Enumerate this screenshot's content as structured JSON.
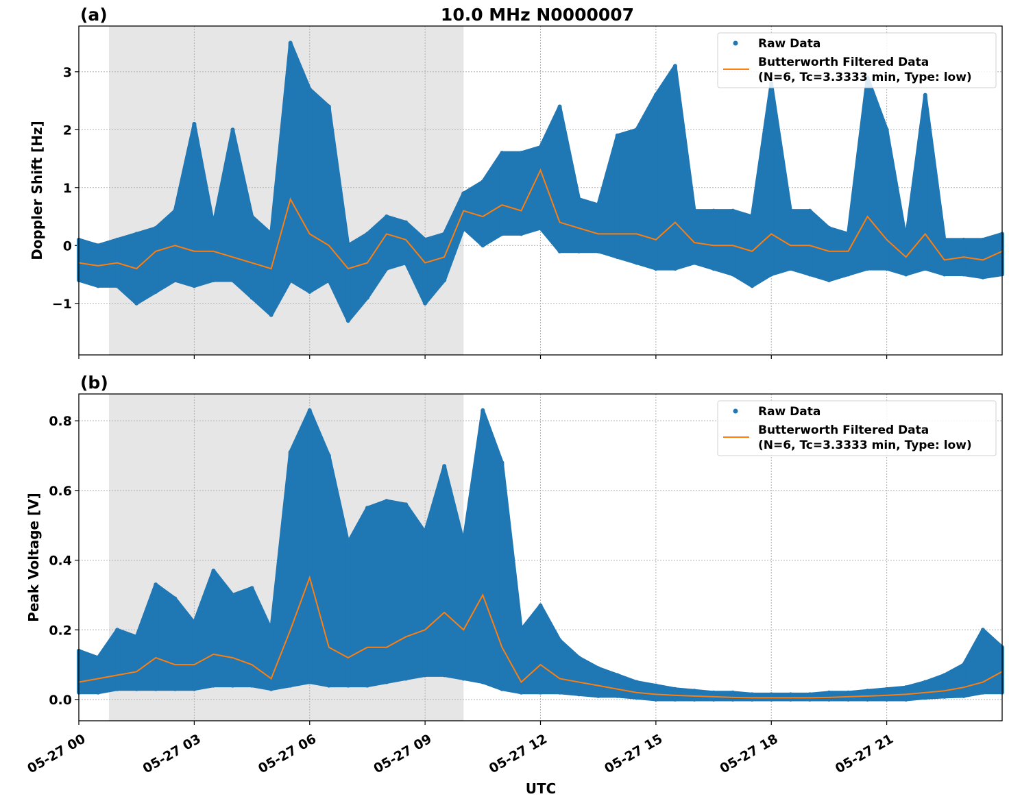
{
  "title": "10.0 MHz N0000007",
  "colors": {
    "raw": "#1f77b4",
    "filtered": "#ff7f0e",
    "shade": "#e6e6e6"
  },
  "shaded_interval": [
    "05-27 00:47",
    "05-27 10:00"
  ],
  "chart_data": [
    {
      "type": "scatter",
      "panel_label": "(a)",
      "ylabel": "Doppler Shift [Hz]",
      "xlabel": "",
      "ylim": [
        -1.89,
        3.79
      ],
      "yticks": [
        -1,
        0,
        1,
        2,
        3
      ],
      "ytick_labels": [
        "−1",
        "0",
        "1",
        "2",
        "3"
      ],
      "grid": true,
      "legend_position": "top-right",
      "legend": [
        "Raw Data",
        "Butterworth Filtered Data",
        "(N=6, Tc=3.3333 min, Type: low)"
      ],
      "x_hours_from": "05-27 00:00",
      "x": [
        0,
        0.5,
        1,
        1.5,
        2,
        2.5,
        3,
        3.5,
        4,
        4.5,
        5,
        5.5,
        6,
        6.5,
        7,
        7.5,
        8,
        8.5,
        9,
        9.5,
        10,
        10.5,
        11,
        11.5,
        12,
        12.5,
        13,
        13.5,
        14,
        14.5,
        15,
        15.5,
        16,
        16.5,
        17,
        17.5,
        18,
        18.5,
        19,
        19.5,
        20,
        20.5,
        21,
        21.5,
        22,
        22.5,
        23,
        23.5,
        24
      ],
      "series": [
        {
          "name": "Butterworth Filtered Data",
          "values": [
            -0.3,
            -0.35,
            -0.3,
            -0.4,
            -0.1,
            0.0,
            -0.1,
            -0.1,
            -0.2,
            -0.3,
            -0.4,
            0.8,
            0.2,
            0.0,
            -0.4,
            -0.3,
            0.2,
            0.1,
            -0.3,
            -0.2,
            0.6,
            0.5,
            0.7,
            0.6,
            1.3,
            0.4,
            0.3,
            0.2,
            0.2,
            0.2,
            0.1,
            0.4,
            0.05,
            0.0,
            0.0,
            -0.1,
            0.2,
            0.0,
            0.0,
            -0.1,
            -0.1,
            0.5,
            0.1,
            -0.2,
            0.2,
            -0.25,
            -0.2,
            -0.25,
            -0.1
          ]
        },
        {
          "name": "Raw Data",
          "low": [
            -0.6,
            -0.7,
            -0.7,
            -1.0,
            -0.8,
            -0.6,
            -0.7,
            -0.6,
            -0.6,
            -0.9,
            -1.2,
            -0.6,
            -0.8,
            -0.6,
            -1.3,
            -0.9,
            -0.4,
            -0.3,
            -1.0,
            -0.6,
            0.3,
            0.0,
            0.2,
            0.2,
            0.3,
            -0.1,
            -0.1,
            -0.1,
            -0.2,
            -0.3,
            -0.4,
            -0.4,
            -0.3,
            -0.4,
            -0.5,
            -0.7,
            -0.5,
            -0.4,
            -0.5,
            -0.6,
            -0.5,
            -0.4,
            -0.4,
            -0.5,
            -0.4,
            -0.5,
            -0.5,
            -0.55,
            -0.5
          ],
          "high": [
            0.1,
            0.0,
            0.1,
            0.2,
            0.3,
            0.6,
            2.1,
            0.35,
            2.0,
            0.5,
            0.2,
            3.5,
            2.7,
            2.4,
            0.0,
            0.2,
            0.5,
            0.4,
            0.1,
            0.2,
            0.9,
            1.1,
            1.6,
            1.6,
            1.7,
            2.4,
            0.8,
            0.7,
            1.9,
            2.0,
            2.6,
            3.1,
            0.6,
            0.6,
            0.6,
            0.5,
            2.8,
            0.6,
            0.6,
            0.3,
            0.2,
            2.9,
            2.0,
            0.1,
            2.6,
            0.1,
            0.1,
            0.1,
            0.2
          ]
        }
      ]
    },
    {
      "type": "scatter",
      "panel_label": "(b)",
      "ylabel": "Peak Voltage [V]",
      "xlabel": "UTC",
      "ylim": [
        -0.061,
        0.877
      ],
      "yticks": [
        0.0,
        0.2,
        0.4,
        0.6,
        0.8
      ],
      "ytick_labels": [
        "0.0",
        "0.2",
        "0.4",
        "0.6",
        "0.8"
      ],
      "xtick_labels": [
        "05-27 00",
        "05-27 03",
        "05-27 06",
        "05-27 09",
        "05-27 12",
        "05-27 15",
        "05-27 18",
        "05-27 21"
      ],
      "xticks_hours": [
        0,
        3,
        6,
        9,
        12,
        15,
        18,
        21
      ],
      "xlim_hours": [
        0,
        24
      ],
      "grid": true,
      "legend_position": "top-right",
      "legend": [
        "Raw Data",
        "Butterworth Filtered Data",
        "(N=6, Tc=3.3333 min, Type: low)"
      ],
      "x": [
        0,
        0.5,
        1,
        1.5,
        2,
        2.5,
        3,
        3.5,
        4,
        4.5,
        5,
        5.5,
        6,
        6.5,
        7,
        7.5,
        8,
        8.5,
        9,
        9.5,
        10,
        10.5,
        11,
        11.5,
        12,
        12.5,
        13,
        13.5,
        14,
        14.5,
        15,
        15.5,
        16,
        16.5,
        17,
        17.5,
        18,
        18.5,
        19,
        19.5,
        20,
        20.5,
        21,
        21.5,
        22,
        22.5,
        23,
        23.5,
        24
      ],
      "series": [
        {
          "name": "Butterworth Filtered Data",
          "values": [
            0.05,
            0.06,
            0.07,
            0.08,
            0.12,
            0.1,
            0.1,
            0.13,
            0.12,
            0.1,
            0.06,
            0.2,
            0.35,
            0.15,
            0.12,
            0.15,
            0.15,
            0.18,
            0.2,
            0.25,
            0.2,
            0.3,
            0.15,
            0.05,
            0.1,
            0.06,
            0.05,
            0.04,
            0.03,
            0.02,
            0.015,
            0.012,
            0.01,
            0.008,
            0.006,
            0.005,
            0.005,
            0.005,
            0.005,
            0.006,
            0.008,
            0.01,
            0.012,
            0.015,
            0.02,
            0.025,
            0.035,
            0.05,
            0.08
          ]
        },
        {
          "name": "Raw Data",
          "low": [
            0.02,
            0.02,
            0.03,
            0.03,
            0.03,
            0.03,
            0.03,
            0.04,
            0.04,
            0.04,
            0.03,
            0.04,
            0.05,
            0.04,
            0.04,
            0.04,
            0.05,
            0.06,
            0.07,
            0.07,
            0.06,
            0.05,
            0.03,
            0.02,
            0.02,
            0.02,
            0.015,
            0.01,
            0.01,
            0.005,
            0.0,
            0.0,
            0.0,
            0.0,
            0.0,
            0.0,
            0.0,
            0.0,
            0.0,
            0.0,
            0.0,
            0.0,
            0.0,
            0.0,
            0.005,
            0.008,
            0.01,
            0.02,
            0.02
          ],
          "high": [
            0.14,
            0.12,
            0.2,
            0.18,
            0.33,
            0.29,
            0.22,
            0.37,
            0.3,
            0.32,
            0.2,
            0.71,
            0.83,
            0.7,
            0.45,
            0.55,
            0.57,
            0.56,
            0.48,
            0.67,
            0.45,
            0.83,
            0.68,
            0.2,
            0.27,
            0.17,
            0.12,
            0.09,
            0.07,
            0.05,
            0.04,
            0.03,
            0.025,
            0.02,
            0.02,
            0.015,
            0.015,
            0.015,
            0.015,
            0.02,
            0.02,
            0.025,
            0.03,
            0.035,
            0.05,
            0.07,
            0.1,
            0.2,
            0.15
          ]
        }
      ]
    }
  ]
}
